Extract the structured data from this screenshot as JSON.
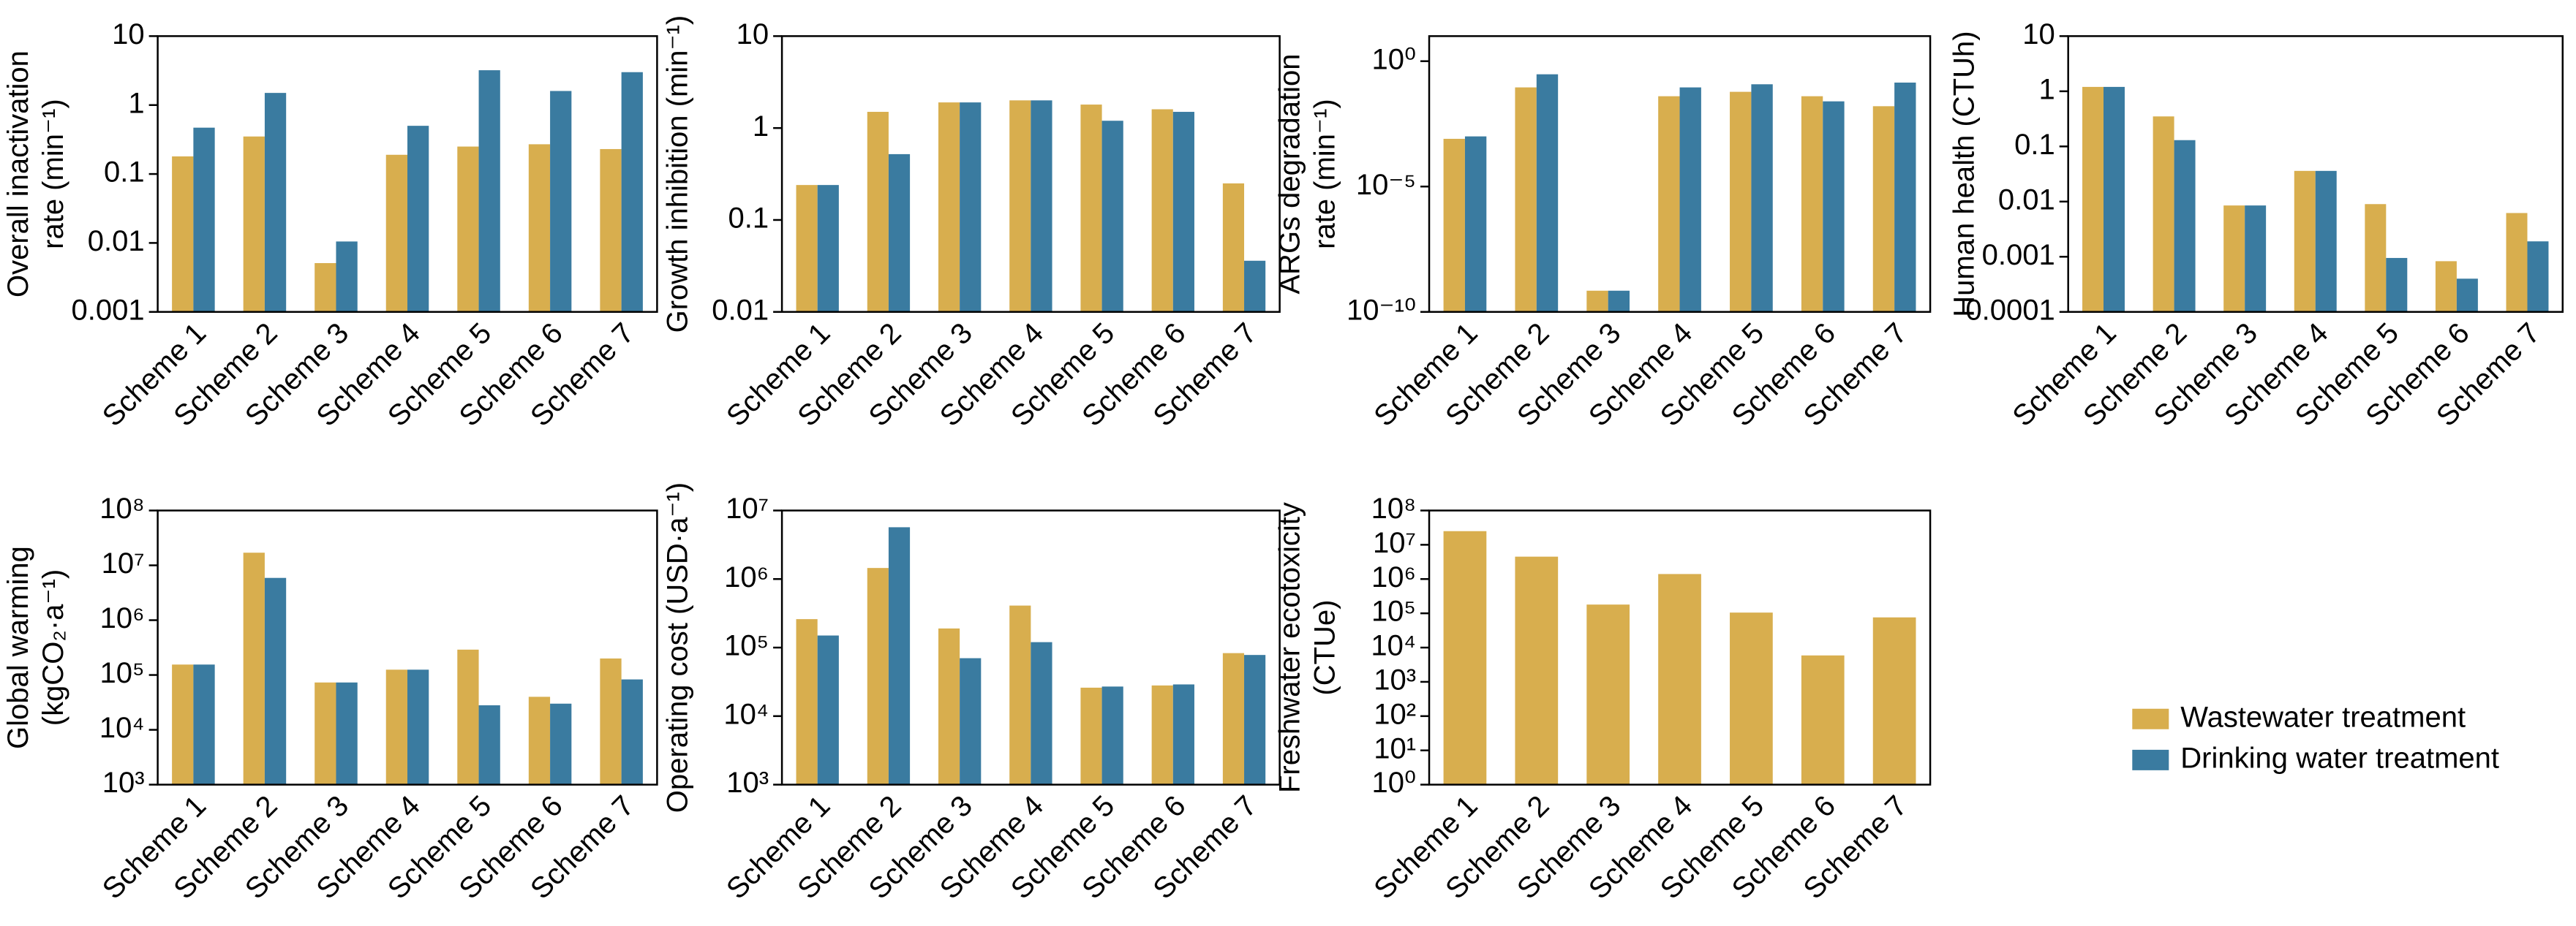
{
  "chart_data": [
    {
      "type": "bar",
      "ylabel": [
        "Overall inactivation",
        "rate (min⁻¹)"
      ],
      "log_scale": true,
      "categories": [
        "Scheme 1",
        "Scheme 2",
        "Scheme 3",
        "Scheme 4",
        "Scheme 5",
        "Scheme 6",
        "Scheme 7"
      ],
      "series": [
        {
          "color": "#D8AE4E",
          "values": [
            0.18,
            0.35,
            0.0051,
            0.19,
            0.25,
            0.27,
            0.23
          ]
        },
        {
          "color": "#3A7BA0",
          "values": [
            0.47,
            1.5,
            0.0105,
            0.5,
            3.2,
            1.6,
            3.0
          ]
        }
      ],
      "ylim": [
        0.001,
        10
      ],
      "yticks": [
        0.001,
        0.01,
        0.1,
        1,
        10
      ]
    },
    {
      "type": "bar",
      "ylabel": [
        "Growth inhibition (min⁻¹)"
      ],
      "log_scale": true,
      "categories": [
        "Scheme 1",
        "Scheme 2",
        "Scheme 3",
        "Scheme 4",
        "Scheme 5",
        "Scheme 6",
        "Scheme 7"
      ],
      "series": [
        {
          "color": "#D8AE4E",
          "values": [
            0.24,
            1.5,
            1.9,
            2.0,
            1.8,
            1.6,
            0.25
          ]
        },
        {
          "color": "#3A7BA0",
          "values": [
            0.24,
            0.52,
            1.9,
            2.0,
            1.2,
            1.5,
            0.036
          ]
        }
      ],
      "ylim": [
        0.01,
        10
      ],
      "yticks": [
        0.01,
        0.1,
        1,
        10
      ]
    },
    {
      "type": "bar",
      "ylabel": [
        "ARGs degradation",
        "rate (min⁻¹)"
      ],
      "log_scale": true,
      "categories": [
        "Scheme 1",
        "Scheme 2",
        "Scheme 3",
        "Scheme 4",
        "Scheme 5",
        "Scheme 6",
        "Scheme 7"
      ],
      "series": [
        {
          "color": "#D8AE4E",
          "values": [
            0.0008,
            0.09,
            7e-10,
            0.04,
            0.06,
            0.04,
            0.016
          ]
        },
        {
          "color": "#3A7BA0",
          "values": [
            0.001,
            0.3,
            7e-10,
            0.09,
            0.12,
            0.025,
            0.14
          ]
        }
      ],
      "ylim": [
        1e-10,
        10
      ],
      "yticks": [
        {
          "value": 1e-10,
          "label": "10⁻¹⁰"
        },
        {
          "value": 1e-05,
          "label": "10⁻⁵"
        },
        {
          "value": 1,
          "label": "10⁰"
        }
      ]
    },
    {
      "type": "bar",
      "ylabel": [
        "Human health (CTUh)"
      ],
      "log_scale": true,
      "categories": [
        "Scheme 1",
        "Scheme 2",
        "Scheme 3",
        "Scheme 4",
        "Scheme 5",
        "Scheme 6",
        "Scheme 7"
      ],
      "series": [
        {
          "color": "#D8AE4E",
          "values": [
            1.2,
            0.35,
            0.0085,
            0.036,
            0.009,
            0.00083,
            0.0062
          ]
        },
        {
          "color": "#3A7BA0",
          "values": [
            1.2,
            0.13,
            0.0085,
            0.036,
            0.00095,
            0.0004,
            0.0019
          ]
        }
      ],
      "ylim": [
        0.0001,
        10
      ],
      "yticks": [
        0.0001,
        0.001,
        0.01,
        0.1,
        1,
        10
      ]
    },
    {
      "type": "bar",
      "ylabel": [
        "Global warming",
        "(kgCO₂·a⁻¹)"
      ],
      "log_scale": true,
      "categories": [
        "Scheme 1",
        "Scheme 2",
        "Scheme 3",
        "Scheme 4",
        "Scheme 5",
        "Scheme 6",
        "Scheme 7"
      ],
      "series": [
        {
          "color": "#D8AE4E",
          "values": [
            155000,
            17000000,
            73000,
            125000,
            290000,
            40000,
            200000
          ]
        },
        {
          "color": "#3A7BA0",
          "values": [
            155000,
            5900000,
            73000,
            125000,
            28000,
            30000,
            83000
          ]
        }
      ],
      "ylim": [
        1000,
        100000000
      ],
      "yticks": [
        {
          "value": 1000,
          "label": "10³"
        },
        {
          "value": 10000,
          "label": "10⁴"
        },
        {
          "value": 100000,
          "label": "10⁵"
        },
        {
          "value": 1000000,
          "label": "10⁶"
        },
        {
          "value": 10000000,
          "label": "10⁷"
        },
        {
          "value": 100000000,
          "label": "10⁸"
        }
      ]
    },
    {
      "type": "bar",
      "ylabel": [
        "Operating cost (USD·a⁻¹)"
      ],
      "log_scale": true,
      "categories": [
        "Scheme 1",
        "Scheme 2",
        "Scheme 3",
        "Scheme 4",
        "Scheme 5",
        "Scheme 6",
        "Scheme 7"
      ],
      "series": [
        {
          "color": "#D8AE4E",
          "values": [
            260000,
            1450000,
            190000,
            410000,
            26000,
            28000,
            83000
          ]
        },
        {
          "color": "#3A7BA0",
          "values": [
            150000,
            5700000,
            70000,
            120000,
            27000,
            29000,
            78000
          ]
        }
      ],
      "ylim": [
        1000,
        10000000
      ],
      "yticks": [
        {
          "value": 1000,
          "label": "10³"
        },
        {
          "value": 10000,
          "label": "10⁴"
        },
        {
          "value": 100000,
          "label": "10⁵"
        },
        {
          "value": 1000000,
          "label": "10⁶"
        },
        {
          "value": 10000000,
          "label": "10⁷"
        }
      ]
    },
    {
      "type": "bar",
      "ylabel": [
        "Freshwater ecotoxicity",
        "(CTUe)"
      ],
      "log_scale": true,
      "categories": [
        "Scheme 1",
        "Scheme 2",
        "Scheme 3",
        "Scheme 4",
        "Scheme 5",
        "Scheme 6",
        "Scheme 7"
      ],
      "series": [
        {
          "color": "#D8AE4E",
          "values": [
            25000000,
            4500000,
            180000,
            1400000,
            105000,
            5900,
            76000
          ]
        }
      ],
      "ylim": [
        1,
        100000000
      ],
      "yticks": [
        {
          "value": 1,
          "label": "10⁰"
        },
        {
          "value": 10,
          "label": "10¹"
        },
        {
          "value": 100,
          "label": "10²"
        },
        {
          "value": 1000,
          "label": "10³"
        },
        {
          "value": 10000,
          "label": "10⁴"
        },
        {
          "value": 100000,
          "label": "10⁵"
        },
        {
          "value": 1000000,
          "label": "10⁶"
        },
        {
          "value": 10000000,
          "label": "10⁷"
        },
        {
          "value": 100000000,
          "label": "10⁸"
        }
      ]
    }
  ],
  "legend": [
    {
      "name": "Wastewater treatment",
      "color": "#D8AE4E"
    },
    {
      "name": "Drinking water treatment",
      "color": "#3A7BA0"
    }
  ]
}
